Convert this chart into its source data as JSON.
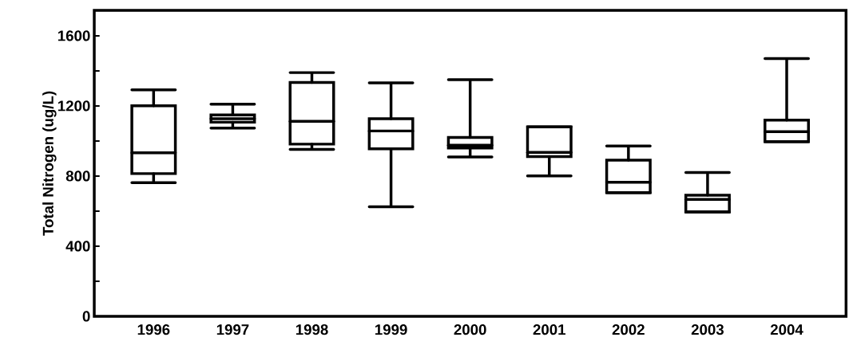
{
  "chart_data": {
    "type": "box",
    "ylabel": "Total Nitrogen (ug/L)",
    "categories": [
      "1996",
      "1997",
      "1998",
      "1999",
      "2000",
      "2001",
      "2002",
      "2003",
      "2004"
    ],
    "color": "#000000",
    "boxes": [
      {
        "low": 762,
        "q1": 814,
        "median": 933,
        "q3": 1201,
        "high": 1292
      },
      {
        "low": 1074,
        "q1": 1107,
        "median": 1127,
        "q3": 1149,
        "high": 1210
      },
      {
        "low": 952,
        "q1": 982,
        "median": 1112,
        "q3": 1334,
        "high": 1390
      },
      {
        "low": 625,
        "q1": 955,
        "median": 1057,
        "q3": 1127,
        "high": 1331
      },
      {
        "low": 909,
        "q1": 960,
        "median": 976,
        "q3": 1020,
        "high": 1350
      },
      {
        "low": 801,
        "q1": 911,
        "median": 935,
        "q3": 1080,
        "high": 1080
      },
      {
        "low": 705,
        "q1": 705,
        "median": 765,
        "q3": 891,
        "high": 971
      },
      {
        "low": 595,
        "q1": 595,
        "median": 667,
        "q3": 691,
        "high": 820
      },
      {
        "low": 996,
        "q1": 996,
        "median": 1053,
        "q3": 1119,
        "high": 1470
      }
    ],
    "ylim": [
      0,
      1745
    ],
    "yticks": [
      0,
      {
        "value": 200,
        "label": null
      },
      400,
      {
        "value": 600,
        "label": null
      },
      800,
      {
        "value": 1000,
        "label": null
      },
      1200,
      {
        "value": 1400,
        "label": null
      },
      1600
    ]
  }
}
